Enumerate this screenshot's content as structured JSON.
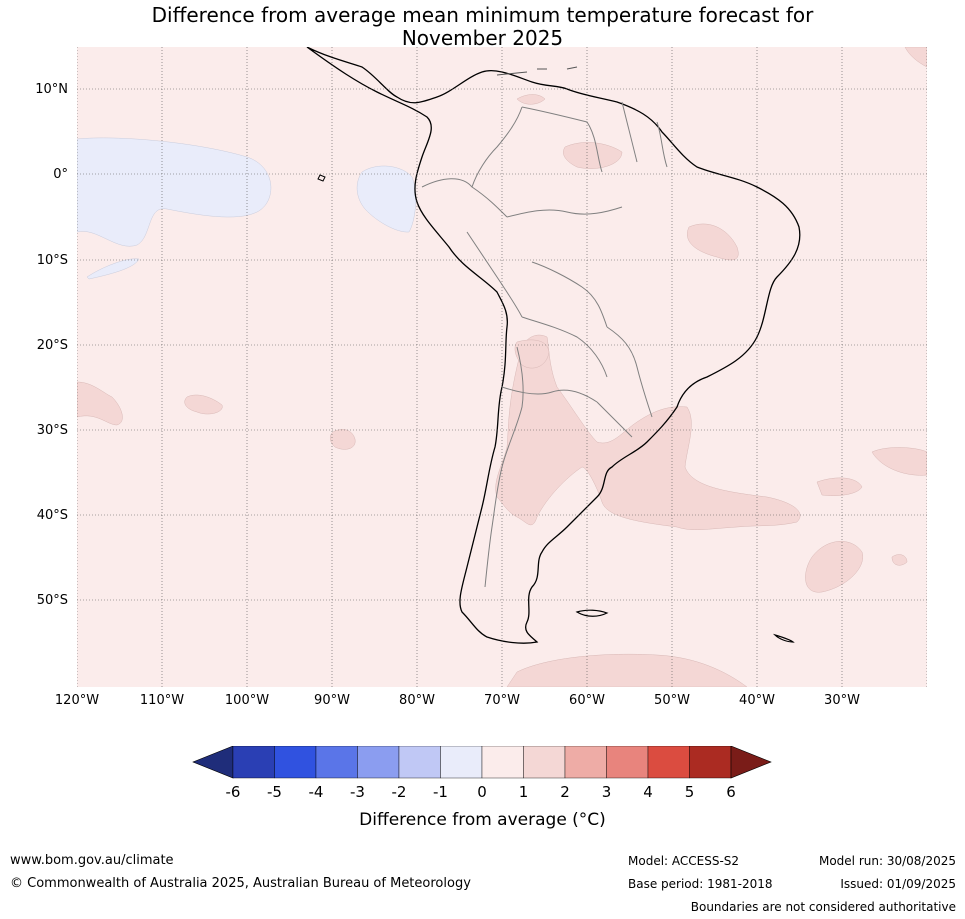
{
  "title": {
    "line1": "Difference from average mean minimum temperature forecast for",
    "line2": "November 2025"
  },
  "map": {
    "lat_labels": [
      "10°N",
      "0°",
      "10°S",
      "20°S",
      "30°S",
      "40°S",
      "50°S"
    ],
    "lon_labels": [
      "120°W",
      "110°W",
      "100°W",
      "90°W",
      "80°W",
      "70°W",
      "60°W",
      "50°W",
      "40°W",
      "30°W"
    ],
    "colors": {
      "background_bin": "#fbeceb",
      "warm_patch": "#f4d7d5",
      "cool_patch": "#e9ecfa",
      "coast": "#000000",
      "border": "#808080",
      "grid": "#555555"
    }
  },
  "colorbar": {
    "ticks": [
      "-6",
      "-5",
      "-4",
      "-3",
      "-2",
      "-1",
      "0",
      "1",
      "2",
      "3",
      "4",
      "5",
      "6"
    ],
    "colors": [
      "#1f2d7a",
      "#2a3fb4",
      "#3052e0",
      "#5a75e8",
      "#8b9df0",
      "#c0c8f5",
      "#e9ecfa",
      "#fbeceb",
      "#f4d7d5",
      "#eeaca6",
      "#e8847d",
      "#db4c40",
      "#ab2b22",
      "#7a1c18"
    ],
    "label": "Difference from average (°C)"
  },
  "footer": {
    "website": "www.bom.gov.au/climate",
    "copyright": "© Commonwealth of Australia 2025, Australian Bureau of Meteorology",
    "model": "Model: ACCESS-S2",
    "base_period": "Base period: 1981-2018",
    "model_run": "Model run: 30/08/2025",
    "issued": "Issued: 01/09/2025",
    "disclaimer": "Boundaries are not considered authoritative"
  }
}
